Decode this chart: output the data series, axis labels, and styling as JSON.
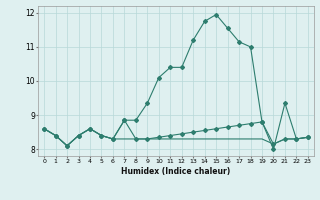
{
  "xlabel": "Humidex (Indice chaleur)",
  "x_values": [
    0,
    1,
    2,
    3,
    4,
    5,
    6,
    7,
    8,
    9,
    10,
    11,
    12,
    13,
    14,
    15,
    16,
    17,
    18,
    19,
    20,
    21,
    22,
    23
  ],
  "series": {
    "line1": [
      8.6,
      8.4,
      8.1,
      8.4,
      8.6,
      8.4,
      8.3,
      8.85,
      8.85,
      9.35,
      10.1,
      10.4,
      10.4,
      11.2,
      11.75,
      11.95,
      11.55,
      11.15,
      11.0,
      8.8,
      8.0,
      9.35,
      8.3,
      8.35
    ],
    "line2": [
      8.6,
      8.4,
      8.1,
      8.4,
      8.6,
      8.4,
      8.3,
      8.85,
      8.3,
      8.3,
      8.35,
      8.4,
      8.45,
      8.5,
      8.55,
      8.6,
      8.65,
      8.7,
      8.75,
      8.8,
      8.15,
      8.3,
      8.3,
      8.35
    ],
    "line3": [
      8.6,
      8.4,
      8.1,
      8.4,
      8.6,
      8.4,
      8.3,
      8.3,
      8.3,
      8.3,
      8.3,
      8.3,
      8.3,
      8.3,
      8.3,
      8.3,
      8.3,
      8.3,
      8.3,
      8.3,
      8.15,
      8.3,
      8.3,
      8.35
    ]
  },
  "line_color": "#2d7d6e",
  "bg_color": "#dff0f0",
  "grid_color": "#b8d8d8",
  "ylim": [
    7.8,
    12.2
  ],
  "xlim": [
    -0.5,
    23.5
  ],
  "yticks": [
    8,
    9,
    10,
    11,
    12
  ],
  "xticks": [
    0,
    1,
    2,
    3,
    4,
    5,
    6,
    7,
    8,
    9,
    10,
    11,
    12,
    13,
    14,
    15,
    16,
    17,
    18,
    19,
    20,
    21,
    22,
    23
  ]
}
